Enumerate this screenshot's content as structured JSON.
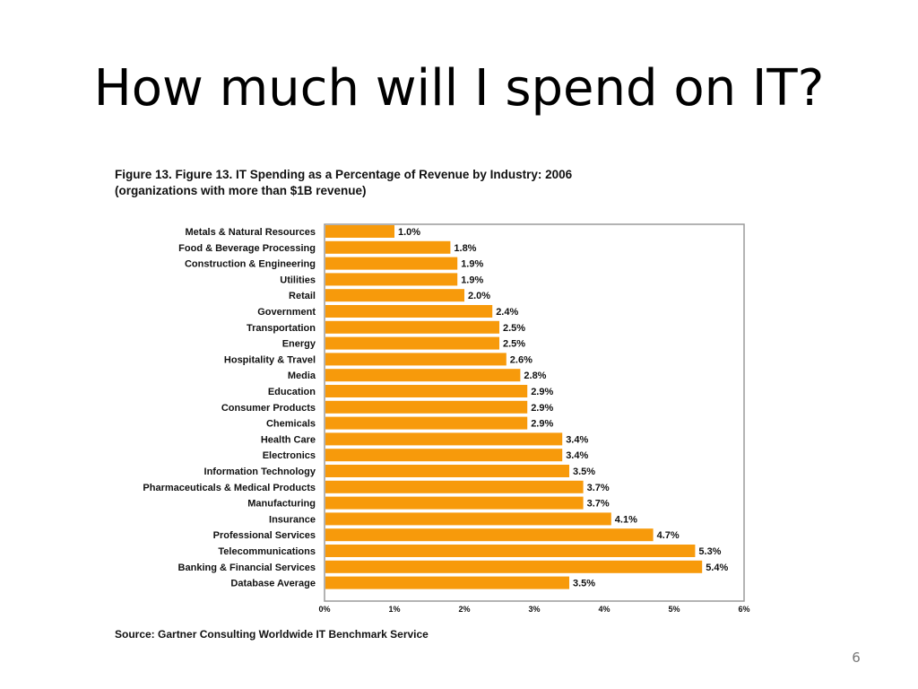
{
  "slide": {
    "title": "How much will I spend on IT?",
    "page_number": "6"
  },
  "chart_data": {
    "type": "bar",
    "orientation": "horizontal",
    "title_line1": "Figure 13. Figure 13. IT Spending as a Percentage of Revenue by Industry: 2006",
    "title_line2": "(organizations with more than $1B revenue)",
    "source": "Source: Gartner Consulting Worldwide IT Benchmark Service",
    "categories": [
      "Metals & Natural Resources",
      "Food & Beverage Processing",
      "Construction & Engineering",
      "Utilities",
      "Retail",
      "Government",
      "Transportation",
      "Energy",
      "Hospitality & Travel",
      "Media",
      "Education",
      "Consumer Products",
      "Chemicals",
      "Health Care",
      "Electronics",
      "Information Technology",
      "Pharmaceuticals & Medical Products",
      "Manufacturing",
      "Insurance",
      "Professional Services",
      "Telecommunications",
      "Banking & Financial Services",
      "Database Average"
    ],
    "values": [
      1.0,
      1.8,
      1.9,
      1.9,
      2.0,
      2.4,
      2.5,
      2.5,
      2.6,
      2.8,
      2.9,
      2.9,
      2.9,
      3.4,
      3.4,
      3.5,
      3.7,
      3.7,
      4.1,
      4.7,
      5.3,
      5.4,
      3.5
    ],
    "value_labels": [
      "1.0%",
      "1.8%",
      "1.9%",
      "1.9%",
      "2.0%",
      "2.4%",
      "2.5%",
      "2.5%",
      "2.6%",
      "2.8%",
      "2.9%",
      "2.9%",
      "2.9%",
      "3.4%",
      "3.4%",
      "3.5%",
      "3.7%",
      "3.7%",
      "4.1%",
      "4.7%",
      "5.3%",
      "5.4%",
      "3.5%"
    ],
    "xlim": [
      0,
      6
    ],
    "x_ticks": [
      0,
      1,
      2,
      3,
      4,
      5,
      6
    ],
    "x_tick_labels": [
      "0%",
      "1%",
      "2%",
      "3%",
      "4%",
      "5%",
      "6%"
    ],
    "grid": false,
    "legend": "none",
    "colors": {
      "bar": "#F79A0B",
      "frame": "#9A9A9A",
      "text": "#111111"
    }
  }
}
